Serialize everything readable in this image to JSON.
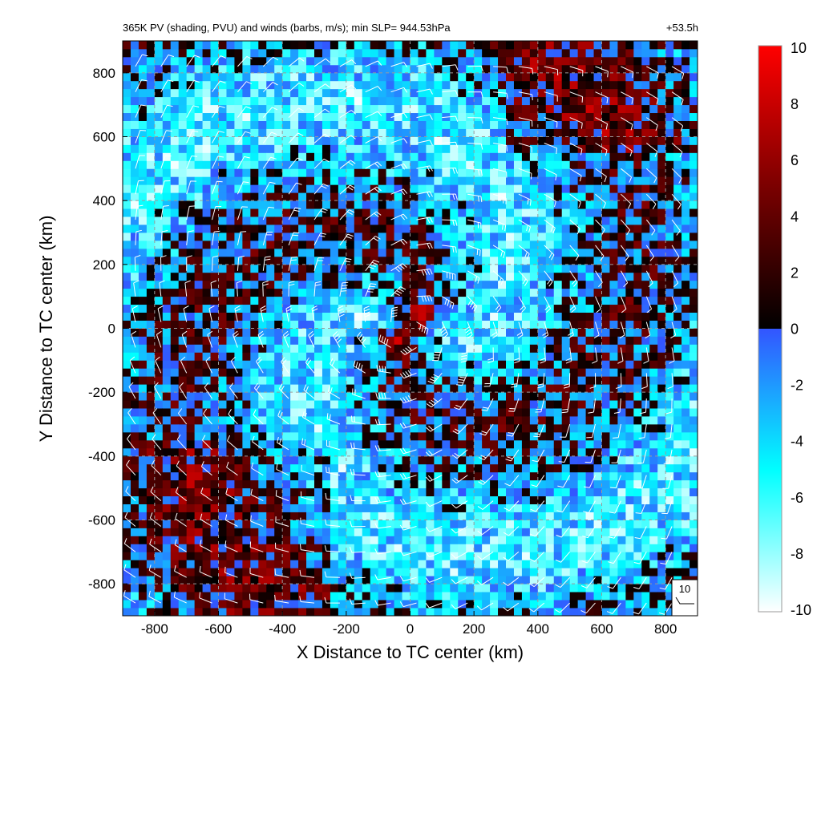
{
  "chart_data": {
    "type": "heatmap",
    "title": "365K PV (shading, PVU) and winds (barbs, m/s); min SLP= 944.53hPa",
    "forecast_time": "+53.5h",
    "xlabel": "X Distance to TC center (km)",
    "ylabel": "Y Distance to TC center (km)",
    "xlim": [
      -900,
      900
    ],
    "ylim": [
      -900,
      900
    ],
    "xticks": [
      -800,
      -600,
      -400,
      -200,
      0,
      200,
      400,
      600,
      800
    ],
    "yticks": [
      -800,
      -600,
      -400,
      -200,
      0,
      200,
      400,
      600,
      800
    ],
    "xtick_labels": [
      "-800",
      "-600",
      "-400",
      "-200",
      "0",
      "200",
      "400",
      "600",
      "800"
    ],
    "ytick_labels": [
      "-800",
      "-600",
      "-400",
      "-200",
      "0",
      "200",
      "400",
      "600",
      "800"
    ],
    "grid": true,
    "field": "365K potential vorticity (PVU)",
    "colorbar": {
      "min": -10,
      "max": 10,
      "ticks": [
        10,
        8,
        6,
        4,
        2,
        0,
        -2,
        -4,
        -6,
        -8,
        -10
      ],
      "tick_labels": [
        "10",
        "8",
        "6",
        "4",
        "2",
        "0",
        "-2",
        "-4",
        "-6",
        "-8",
        "-10"
      ],
      "colors": {
        "10": "#ff0000",
        "5": "#7a0000",
        "0+": "#000000",
        "0-": "#3355ff",
        "-5": "#00ffff",
        "-10": "#ffffff"
      }
    },
    "wind_barbs": {
      "reference_speed": 10,
      "reference_label": "10"
    },
    "circulation_center": [
      0,
      0
    ]
  }
}
